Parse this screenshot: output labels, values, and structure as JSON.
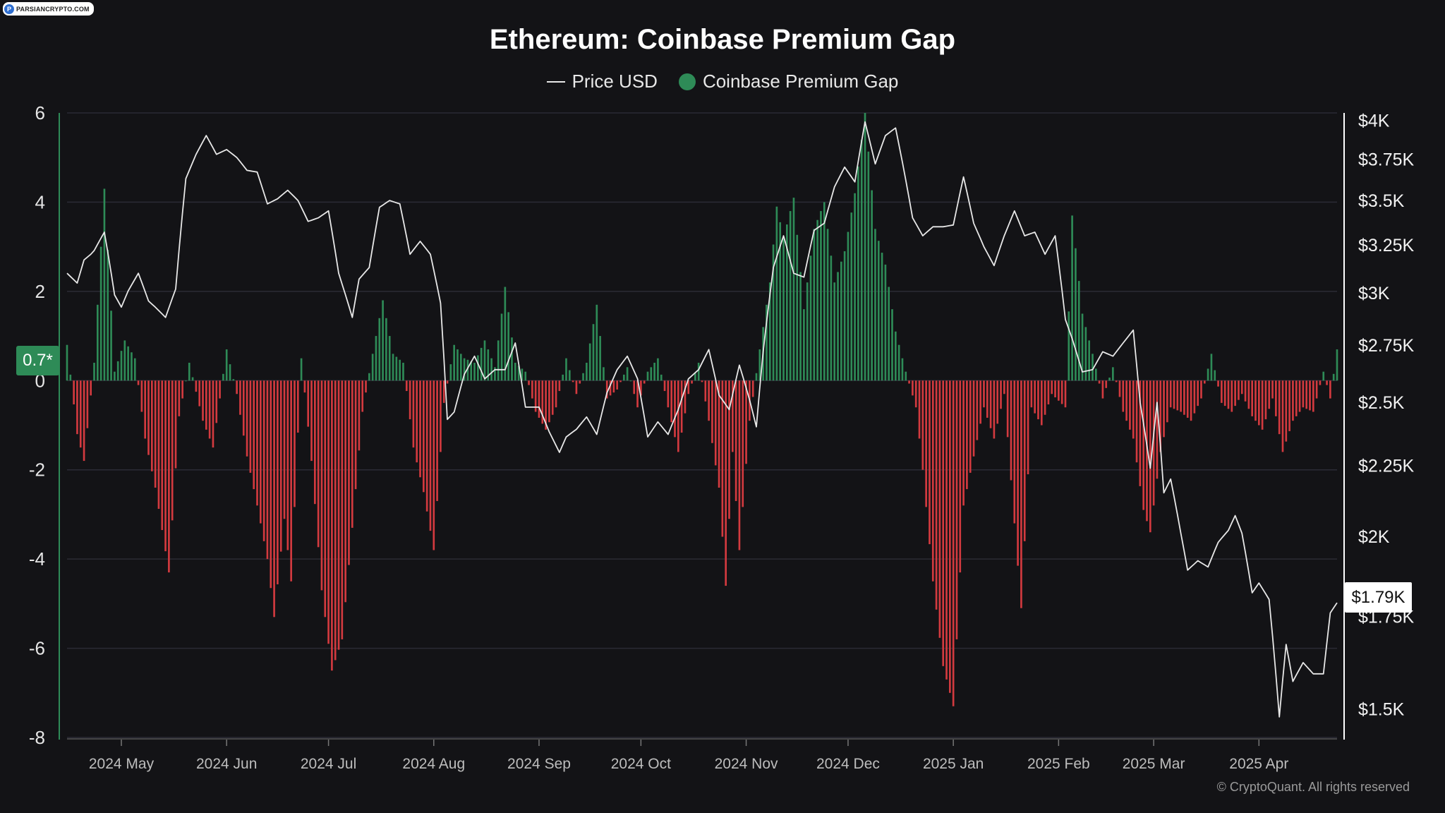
{
  "branding": {
    "logo_text": "PARSIANCRYPTO.COM",
    "copyright": "© CryptoQuant. All rights reserved"
  },
  "colors": {
    "background": "#131316",
    "positive": "#2e8b57",
    "negative": "#d33a3f",
    "price_line": "#e8e8e8",
    "badge_left": "#2e8b57",
    "axis_line_left": "#2e8b57",
    "axis_line_right": "#ffffff"
  },
  "legend": {
    "price": "Price USD",
    "premium": "Coinbase Premium Gap"
  },
  "badges": {
    "left_value": "0.7*",
    "right_value": "$1.79K"
  },
  "chart_data": {
    "type": "bar+line",
    "title": "Ethereum: Coinbase Premium Gap",
    "x_range": [
      "2024-04-15",
      "2025-04-24"
    ],
    "x_ticks": [
      {
        "label": "2024 May",
        "date": "2024-05-01"
      },
      {
        "label": "2024 Jun",
        "date": "2024-06-01"
      },
      {
        "label": "2024 Jul",
        "date": "2024-07-01"
      },
      {
        "label": "2024 Aug",
        "date": "2024-08-01"
      },
      {
        "label": "2024 Sep",
        "date": "2024-09-01"
      },
      {
        "label": "2024 Oct",
        "date": "2024-10-01"
      },
      {
        "label": "2024 Nov",
        "date": "2024-11-01"
      },
      {
        "label": "2024 Dec",
        "date": "2024-12-01"
      },
      {
        "label": "2025 Jan",
        "date": "2025-01-01"
      },
      {
        "label": "2025 Feb",
        "date": "2025-02-01"
      },
      {
        "label": "2025 Mar",
        "date": "2025-03-01"
      },
      {
        "label": "2025 Apr",
        "date": "2025-04-01"
      }
    ],
    "y_left": {
      "min": -8,
      "max": 6,
      "ticks": [
        "6",
        "4",
        "2",
        "0",
        "-2",
        "-4",
        "-6",
        "-8"
      ]
    },
    "y_right": {
      "scale": "log",
      "min": 1430,
      "max": 4050,
      "ticks": [
        {
          "label": "$4K",
          "value": 4000
        },
        {
          "label": "$3.75K",
          "value": 3750
        },
        {
          "label": "$3.5K",
          "value": 3500
        },
        {
          "label": "$3.25K",
          "value": 3250
        },
        {
          "label": "$3K",
          "value": 3000
        },
        {
          "label": "$2.75K",
          "value": 2750
        },
        {
          "label": "$2.5K",
          "value": 2500
        },
        {
          "label": "$2.25K",
          "value": 2250
        },
        {
          "label": "$2K",
          "value": 2000
        },
        {
          "label": "$1.75K",
          "value": 1750
        },
        {
          "label": "$1.5K",
          "value": 1500
        }
      ]
    },
    "premium_series": {
      "name": "Coinbase Premium Gap",
      "anchors": [
        [
          "2024-04-15",
          0.8
        ],
        [
          "2024-04-18",
          -1.2
        ],
        [
          "2024-04-20",
          -1.8
        ],
        [
          "2024-04-23",
          0.4
        ],
        [
          "2024-04-26",
          4.3
        ],
        [
          "2024-04-29",
          0.2
        ],
        [
          "2024-05-02",
          0.9
        ],
        [
          "2024-05-05",
          0.5
        ],
        [
          "2024-05-08",
          -1.3
        ],
        [
          "2024-05-11",
          -2.4
        ],
        [
          "2024-05-15",
          -4.3
        ],
        [
          "2024-05-18",
          -0.8
        ],
        [
          "2024-05-21",
          0.4
        ],
        [
          "2024-05-25",
          -0.9
        ],
        [
          "2024-05-28",
          -1.5
        ],
        [
          "2024-06-01",
          0.7
        ],
        [
          "2024-06-04",
          -0.3
        ],
        [
          "2024-06-07",
          -1.7
        ],
        [
          "2024-06-10",
          -2.8
        ],
        [
          "2024-06-13",
          -4.0
        ],
        [
          "2024-06-15",
          -5.3
        ],
        [
          "2024-06-18",
          -3.1
        ],
        [
          "2024-06-20",
          -4.5
        ],
        [
          "2024-06-23",
          0.5
        ],
        [
          "2024-06-26",
          -1.8
        ],
        [
          "2024-06-29",
          -4.7
        ],
        [
          "2024-07-02",
          -6.5
        ],
        [
          "2024-07-05",
          -5.8
        ],
        [
          "2024-07-08",
          -3.3
        ],
        [
          "2024-07-11",
          -0.7
        ],
        [
          "2024-07-14",
          0.6
        ],
        [
          "2024-07-17",
          1.8
        ],
        [
          "2024-07-20",
          0.6
        ],
        [
          "2024-07-23",
          0.4
        ],
        [
          "2024-07-26",
          -1.5
        ],
        [
          "2024-07-29",
          -2.5
        ],
        [
          "2024-08-01",
          -3.8
        ],
        [
          "2024-08-04",
          -0.5
        ],
        [
          "2024-08-07",
          0.8
        ],
        [
          "2024-08-10",
          0.5
        ],
        [
          "2024-08-13",
          0.4
        ],
        [
          "2024-08-16",
          0.9
        ],
        [
          "2024-08-19",
          0.3
        ],
        [
          "2024-08-22",
          2.1
        ],
        [
          "2024-08-25",
          0.4
        ],
        [
          "2024-08-28",
          0.2
        ],
        [
          "2024-08-31",
          -0.7
        ],
        [
          "2024-09-03",
          -1.1
        ],
        [
          "2024-09-06",
          -0.6
        ],
        [
          "2024-09-09",
          0.5
        ],
        [
          "2024-09-12",
          -0.3
        ],
        [
          "2024-09-15",
          0.4
        ],
        [
          "2024-09-18",
          1.7
        ],
        [
          "2024-09-21",
          -0.4
        ],
        [
          "2024-09-24",
          -0.2
        ],
        [
          "2024-09-27",
          0.3
        ],
        [
          "2024-09-30",
          -0.6
        ],
        [
          "2024-10-03",
          0.2
        ],
        [
          "2024-10-06",
          0.5
        ],
        [
          "2024-10-09",
          -0.6
        ],
        [
          "2024-10-12",
          -1.6
        ],
        [
          "2024-10-15",
          -0.3
        ],
        [
          "2024-10-18",
          0.4
        ],
        [
          "2024-10-21",
          -0.9
        ],
        [
          "2024-10-24",
          -2.4
        ],
        [
          "2024-10-26",
          -4.6
        ],
        [
          "2024-10-28",
          -1.6
        ],
        [
          "2024-10-30",
          -3.8
        ],
        [
          "2024-11-02",
          -0.9
        ],
        [
          "2024-11-05",
          0.7
        ],
        [
          "2024-11-08",
          2.2
        ],
        [
          "2024-11-10",
          3.9
        ],
        [
          "2024-11-12",
          3.2
        ],
        [
          "2024-11-15",
          4.1
        ],
        [
          "2024-11-18",
          1.6
        ],
        [
          "2024-11-21",
          3.4
        ],
        [
          "2024-11-24",
          4.0
        ],
        [
          "2024-11-27",
          2.2
        ],
        [
          "2024-11-30",
          2.9
        ],
        [
          "2024-12-03",
          4.2
        ],
        [
          "2024-12-06",
          6.0
        ],
        [
          "2024-12-09",
          3.4
        ],
        [
          "2024-12-12",
          2.6
        ],
        [
          "2024-12-15",
          1.1
        ],
        [
          "2024-12-18",
          0.2
        ],
        [
          "2024-12-21",
          -0.6
        ],
        [
          "2024-12-23",
          -2.0
        ],
        [
          "2024-12-26",
          -4.5
        ],
        [
          "2024-12-29",
          -6.4
        ],
        [
          "2025-01-01",
          -7.3
        ],
        [
          "2025-01-04",
          -2.8
        ],
        [
          "2025-01-07",
          -1.7
        ],
        [
          "2025-01-10",
          -0.6
        ],
        [
          "2025-01-13",
          -1.3
        ],
        [
          "2025-01-16",
          -0.3
        ],
        [
          "2025-01-19",
          -3.2
        ],
        [
          "2025-01-21",
          -5.1
        ],
        [
          "2025-01-24",
          -0.6
        ],
        [
          "2025-01-27",
          -1.0
        ],
        [
          "2025-01-30",
          -0.3
        ],
        [
          "2025-02-03",
          -0.6
        ],
        [
          "2025-02-05",
          3.7
        ],
        [
          "2025-02-08",
          1.5
        ],
        [
          "2025-02-11",
          0.6
        ],
        [
          "2025-02-14",
          -0.4
        ],
        [
          "2025-02-17",
          0.3
        ],
        [
          "2025-02-20",
          -0.7
        ],
        [
          "2025-02-23",
          -1.3
        ],
        [
          "2025-02-26",
          -2.9
        ],
        [
          "2025-02-28",
          -3.4
        ],
        [
          "2025-03-03",
          -1.6
        ],
        [
          "2025-03-06",
          -0.6
        ],
        [
          "2025-03-09",
          -0.7
        ],
        [
          "2025-03-12",
          -0.9
        ],
        [
          "2025-03-15",
          -0.4
        ],
        [
          "2025-03-18",
          0.6
        ],
        [
          "2025-03-21",
          -0.5
        ],
        [
          "2025-03-24",
          -0.7
        ],
        [
          "2025-03-27",
          -0.3
        ],
        [
          "2025-03-30",
          -0.8
        ],
        [
          "2025-04-02",
          -1.1
        ],
        [
          "2025-04-05",
          -0.4
        ],
        [
          "2025-04-08",
          -1.6
        ],
        [
          "2025-04-11",
          -0.9
        ],
        [
          "2025-04-14",
          -0.6
        ],
        [
          "2025-04-17",
          -0.7
        ],
        [
          "2025-04-20",
          0.2
        ],
        [
          "2025-04-22",
          -0.4
        ],
        [
          "2025-04-24",
          0.7
        ]
      ]
    },
    "price_series": {
      "name": "Price USD",
      "anchors": [
        [
          "2024-04-15",
          3100
        ],
        [
          "2024-04-18",
          3050
        ],
        [
          "2024-04-20",
          3170
        ],
        [
          "2024-04-22",
          3200
        ],
        [
          "2024-04-23",
          3220
        ],
        [
          "2024-04-26",
          3320
        ],
        [
          "2024-04-29",
          2990
        ],
        [
          "2024-05-01",
          2930
        ],
        [
          "2024-05-03",
          3010
        ],
        [
          "2024-05-06",
          3100
        ],
        [
          "2024-05-09",
          2960
        ],
        [
          "2024-05-11",
          2930
        ],
        [
          "2024-05-14",
          2880
        ],
        [
          "2024-05-17",
          3020
        ],
        [
          "2024-05-20",
          3630
        ],
        [
          "2024-05-23",
          3780
        ],
        [
          "2024-05-26",
          3900
        ],
        [
          "2024-05-29",
          3780
        ],
        [
          "2024-06-01",
          3810
        ],
        [
          "2024-06-04",
          3760
        ],
        [
          "2024-06-07",
          3680
        ],
        [
          "2024-06-10",
          3670
        ],
        [
          "2024-06-13",
          3480
        ],
        [
          "2024-06-16",
          3510
        ],
        [
          "2024-06-19",
          3560
        ],
        [
          "2024-06-22",
          3500
        ],
        [
          "2024-06-25",
          3380
        ],
        [
          "2024-06-28",
          3400
        ],
        [
          "2024-07-01",
          3440
        ],
        [
          "2024-07-04",
          3100
        ],
        [
          "2024-07-06",
          2990
        ],
        [
          "2024-07-08",
          2880
        ],
        [
          "2024-07-10",
          3070
        ],
        [
          "2024-07-13",
          3130
        ],
        [
          "2024-07-16",
          3460
        ],
        [
          "2024-07-19",
          3500
        ],
        [
          "2024-07-22",
          3480
        ],
        [
          "2024-07-25",
          3200
        ],
        [
          "2024-07-28",
          3270
        ],
        [
          "2024-07-31",
          3200
        ],
        [
          "2024-08-03",
          2950
        ],
        [
          "2024-08-05",
          2430
        ],
        [
          "2024-08-07",
          2460
        ],
        [
          "2024-08-10",
          2620
        ],
        [
          "2024-08-13",
          2700
        ],
        [
          "2024-08-16",
          2600
        ],
        [
          "2024-08-19",
          2640
        ],
        [
          "2024-08-22",
          2640
        ],
        [
          "2024-08-25",
          2760
        ],
        [
          "2024-08-28",
          2480
        ],
        [
          "2024-09-01",
          2480
        ],
        [
          "2024-09-04",
          2380
        ],
        [
          "2024-09-07",
          2300
        ],
        [
          "2024-09-09",
          2360
        ],
        [
          "2024-09-12",
          2390
        ],
        [
          "2024-09-15",
          2440
        ],
        [
          "2024-09-18",
          2370
        ],
        [
          "2024-09-21",
          2540
        ],
        [
          "2024-09-24",
          2640
        ],
        [
          "2024-09-27",
          2700
        ],
        [
          "2024-09-30",
          2600
        ],
        [
          "2024-10-03",
          2360
        ],
        [
          "2024-10-06",
          2420
        ],
        [
          "2024-10-09",
          2370
        ],
        [
          "2024-10-12",
          2470
        ],
        [
          "2024-10-15",
          2600
        ],
        [
          "2024-10-18",
          2640
        ],
        [
          "2024-10-21",
          2730
        ],
        [
          "2024-10-24",
          2530
        ],
        [
          "2024-10-27",
          2470
        ],
        [
          "2024-10-30",
          2660
        ],
        [
          "2024-11-02",
          2510
        ],
        [
          "2024-11-04",
          2400
        ],
        [
          "2024-11-06",
          2720
        ],
        [
          "2024-11-09",
          3130
        ],
        [
          "2024-11-12",
          3300
        ],
        [
          "2024-11-15",
          3100
        ],
        [
          "2024-11-18",
          3080
        ],
        [
          "2024-11-21",
          3330
        ],
        [
          "2024-11-24",
          3370
        ],
        [
          "2024-11-27",
          3580
        ],
        [
          "2024-11-30",
          3700
        ],
        [
          "2024-12-03",
          3610
        ],
        [
          "2024-12-06",
          3990
        ],
        [
          "2024-12-09",
          3720
        ],
        [
          "2024-12-12",
          3900
        ],
        [
          "2024-12-15",
          3950
        ],
        [
          "2024-12-18",
          3620
        ],
        [
          "2024-12-20",
          3400
        ],
        [
          "2024-12-23",
          3300
        ],
        [
          "2024-12-26",
          3350
        ],
        [
          "2024-12-29",
          3350
        ],
        [
          "2025-01-01",
          3360
        ],
        [
          "2025-01-04",
          3640
        ],
        [
          "2025-01-07",
          3370
        ],
        [
          "2025-01-10",
          3240
        ],
        [
          "2025-01-13",
          3140
        ],
        [
          "2025-01-16",
          3300
        ],
        [
          "2025-01-19",
          3440
        ],
        [
          "2025-01-22",
          3300
        ],
        [
          "2025-01-25",
          3320
        ],
        [
          "2025-01-28",
          3200
        ],
        [
          "2025-01-31",
          3300
        ],
        [
          "2025-02-03",
          2870
        ],
        [
          "2025-02-05",
          2780
        ],
        [
          "2025-02-08",
          2630
        ],
        [
          "2025-02-11",
          2640
        ],
        [
          "2025-02-14",
          2720
        ],
        [
          "2025-02-17",
          2700
        ],
        [
          "2025-02-20",
          2760
        ],
        [
          "2025-02-23",
          2820
        ],
        [
          "2025-02-25",
          2500
        ],
        [
          "2025-02-28",
          2240
        ],
        [
          "2025-03-02",
          2500
        ],
        [
          "2025-03-04",
          2150
        ],
        [
          "2025-03-06",
          2200
        ],
        [
          "2025-03-09",
          2010
        ],
        [
          "2025-03-11",
          1890
        ],
        [
          "2025-03-14",
          1920
        ],
        [
          "2025-03-17",
          1900
        ],
        [
          "2025-03-20",
          1980
        ],
        [
          "2025-03-23",
          2020
        ],
        [
          "2025-03-25",
          2070
        ],
        [
          "2025-03-27",
          2010
        ],
        [
          "2025-03-30",
          1820
        ],
        [
          "2025-04-01",
          1850
        ],
        [
          "2025-04-04",
          1800
        ],
        [
          "2025-04-07",
          1480
        ],
        [
          "2025-04-09",
          1670
        ],
        [
          "2025-04-11",
          1570
        ],
        [
          "2025-04-14",
          1620
        ],
        [
          "2025-04-17",
          1590
        ],
        [
          "2025-04-20",
          1590
        ],
        [
          "2025-04-22",
          1760
        ],
        [
          "2025-04-24",
          1790
        ]
      ]
    }
  }
}
